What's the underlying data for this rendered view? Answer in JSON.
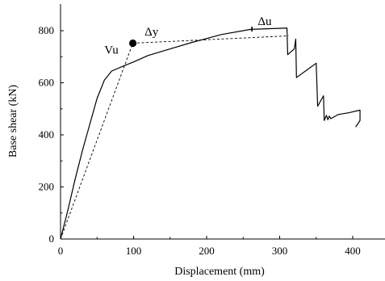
{
  "chart_data": {
    "type": "line",
    "xlabel": "Displacement (mm)",
    "ylabel": "Base shear (kN)",
    "xlim": [
      0,
      450
    ],
    "ylim": [
      0,
      900
    ],
    "xticks": [
      0,
      100,
      200,
      300,
      400
    ],
    "yticks": [
      0,
      200,
      400,
      600,
      800
    ],
    "grid": false,
    "series": [
      {
        "style": "solid",
        "points": [
          [
            0,
            0
          ],
          [
            10,
            110
          ],
          [
            20,
            230
          ],
          [
            30,
            340
          ],
          [
            40,
            440
          ],
          [
            50,
            540
          ],
          [
            60,
            610
          ],
          [
            70,
            645
          ],
          [
            85,
            663
          ],
          [
            100,
            680
          ],
          [
            120,
            705
          ],
          [
            150,
            730
          ],
          [
            180,
            755
          ],
          [
            220,
            785
          ],
          [
            260,
            805
          ],
          [
            310,
            810
          ],
          [
            311,
            708
          ],
          [
            320,
            730
          ],
          [
            322,
            768
          ],
          [
            323,
            620
          ],
          [
            350,
            675
          ],
          [
            352,
            510
          ],
          [
            360,
            550
          ],
          [
            361,
            455
          ],
          [
            364,
            475
          ],
          [
            366,
            458
          ],
          [
            368,
            472
          ],
          [
            370,
            462
          ],
          [
            380,
            478
          ],
          [
            395,
            485
          ],
          [
            410,
            495
          ],
          [
            410,
            455
          ],
          [
            404,
            430
          ]
        ]
      },
      {
        "style": "dashed",
        "points": [
          [
            0,
            0
          ],
          [
            99,
            752
          ],
          [
            312,
            780
          ]
        ]
      }
    ],
    "markers": [
      {
        "type": "filled-circle",
        "x": 99,
        "y": 752
      },
      {
        "type": "small-tick",
        "x": 262,
        "y": 806
      }
    ],
    "annotations": [
      {
        "text": "Vu",
        "x": 60,
        "y": 712
      },
      {
        "text": "Δy",
        "x": 115,
        "y": 782
      },
      {
        "text": "Δu",
        "x": 270,
        "y": 822
      }
    ]
  }
}
